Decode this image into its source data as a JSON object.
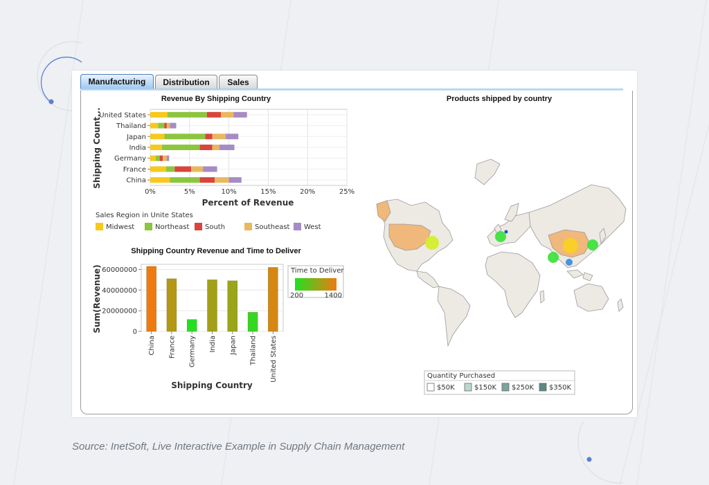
{
  "tabs": [
    {
      "label": "Manufacturing",
      "active": true
    },
    {
      "label": "Distribution",
      "active": false
    },
    {
      "label": "Sales",
      "active": false
    }
  ],
  "colors": {
    "Midwest": "#f7c81e",
    "Northeast": "#8cc63f",
    "South": "#d9453c",
    "Southeast": "#e8b860",
    "West": "#a68bc4",
    "deliver_low": "#22e022",
    "deliver_high": "#f07a10"
  },
  "chart_data": [
    {
      "type": "bar",
      "orientation": "horizontal",
      "stacked": true,
      "title": "Revenue By Shipping Country",
      "xlabel": "Percent of Revenue",
      "ylabel": "Shipping Count...",
      "categories": [
        "United States",
        "Thailand",
        "Japan",
        "India",
        "Germany",
        "France",
        "China"
      ],
      "xlim": [
        0,
        25
      ],
      "xticks": [
        "0%",
        "5%",
        "10%",
        "15%",
        "20%",
        "25%"
      ],
      "series": [
        {
          "name": "Midwest",
          "values": [
            2.2,
            1.0,
            1.8,
            1.5,
            0.7,
            2.0,
            2.5
          ]
        },
        {
          "name": "Northeast",
          "values": [
            5.0,
            0.8,
            5.2,
            4.8,
            0.5,
            1.1,
            3.8
          ]
        },
        {
          "name": "South",
          "values": [
            1.8,
            0.3,
            0.9,
            1.6,
            0.4,
            2.1,
            1.9
          ]
        },
        {
          "name": "Southeast",
          "values": [
            1.6,
            0.4,
            1.7,
            0.9,
            0.5,
            1.5,
            1.8
          ]
        },
        {
          "name": "West",
          "values": [
            1.7,
            0.8,
            1.6,
            1.9,
            0.3,
            1.8,
            1.6
          ]
        }
      ],
      "legend_title": "Sales Region in Unite States",
      "legend_position": "bottom",
      "grid": true
    },
    {
      "type": "bar",
      "title": "Shipping Country Revenue and Time to Deliver",
      "xlabel": "Shipping Country",
      "ylabel": "Sum(Revenue)",
      "categories": [
        "China",
        "France",
        "Germany",
        "India",
        "Japan",
        "Thailand",
        "United States"
      ],
      "values": [
        63000000,
        51000000,
        11500000,
        50000000,
        49000000,
        18500000,
        62000000
      ],
      "time_to_deliver": [
        1400,
        1050,
        220,
        950,
        900,
        300,
        1250
      ],
      "ylim": [
        0,
        65000000
      ],
      "yticks": [
        "0",
        "20000000",
        "40000000",
        "60000000"
      ],
      "legend_title": "Time to Deliver",
      "legend_range": [
        "200",
        "1400"
      ],
      "legend_position": "right",
      "grid": true
    },
    {
      "type": "map",
      "title": "Products shipped by country",
      "legend_title": "Quantity Purchased",
      "legend_items": [
        "$50K",
        "$150K",
        "$250K",
        "$350K"
      ],
      "markers": [
        {
          "country": "United States",
          "delivery": "yellow-green"
        },
        {
          "country": "France",
          "delivery": "green"
        },
        {
          "country": "Germany",
          "delivery": "blue"
        },
        {
          "country": "India",
          "delivery": "green"
        },
        {
          "country": "China",
          "delivery": "yellow"
        },
        {
          "country": "Japan",
          "delivery": "green"
        },
        {
          "country": "Thailand",
          "delivery": "blue"
        }
      ]
    }
  ],
  "source": "Source: InetSoft, Live Interactive Example in Supply Chain Management"
}
